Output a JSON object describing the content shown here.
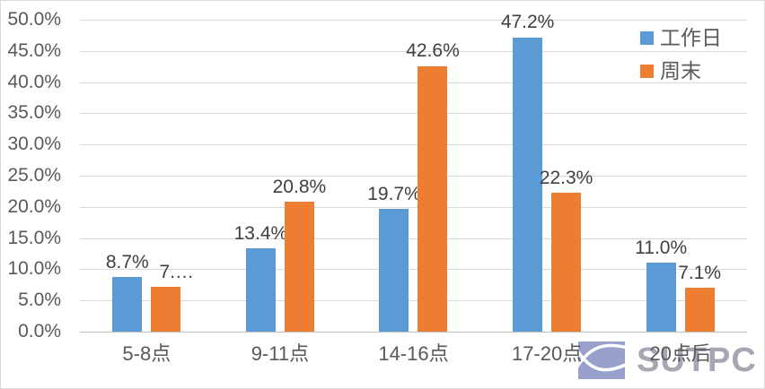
{
  "chart_data": {
    "type": "bar",
    "title": "",
    "categories": [
      "5-8点",
      "9-11点",
      "14-16点",
      "17-20点",
      "20点后"
    ],
    "series": [
      {
        "name": "工作日",
        "color": "#5B9BD5",
        "values": [
          8.7,
          13.4,
          19.7,
          47.2,
          11.0
        ],
        "labels": [
          "8.7%",
          "13.4%",
          "19.7%",
          "47.2%",
          "11.0%"
        ]
      },
      {
        "name": "周末",
        "color": "#ED7D31",
        "values": [
          7.2,
          20.8,
          42.6,
          22.3,
          7.1
        ],
        "labels": [
          "7.…",
          "20.8%",
          "42.6%",
          "22.3%",
          "7.1%"
        ]
      }
    ],
    "xlabel": "",
    "ylabel": "",
    "ylim": [
      0,
      50
    ],
    "ytick_step": 5,
    "ytick_labels": [
      "0.0%",
      "5.0%",
      "10.0%",
      "15.0%",
      "20.0%",
      "25.0%",
      "30.0%",
      "35.0%",
      "40.0%",
      "45.0%",
      "50.0%"
    ],
    "grid": true,
    "gridline_color": "#d9d9d9",
    "axis_line_color": "#bfbfbf",
    "legend_position": "top-right"
  },
  "watermark": {
    "text": "SUTPC",
    "icon_color": "#9aa0cc"
  }
}
